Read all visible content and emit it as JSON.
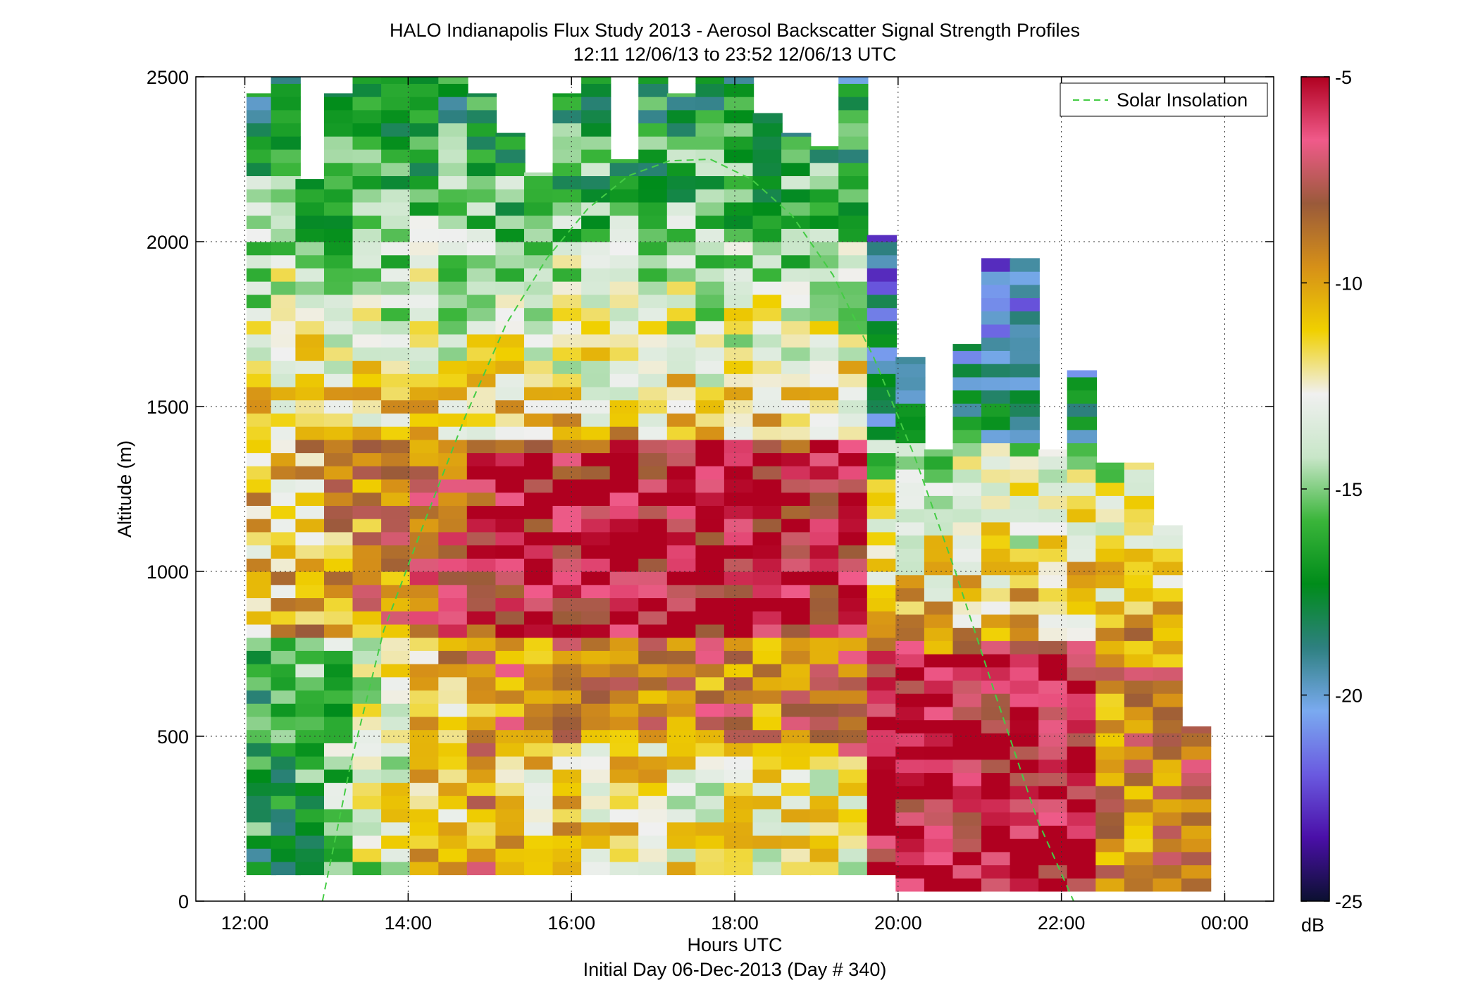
{
  "chart_data": {
    "type": "heatmap",
    "title": "HALO Indianapolis Flux Study 2013 - Aerosol Backscatter Signal Strength Profiles",
    "subtitle": "12:11 12/06/13 to 23:52 12/06/13  UTC",
    "xlabel": "Hours UTC",
    "xlabel2": "Initial Day 06-Dec-2013 (Day # 340)",
    "ylabel": "Altitude (m)",
    "xlim": [
      11.4,
      24.6
    ],
    "ylim": [
      0,
      2500
    ],
    "x_ticks": [
      12,
      14,
      16,
      18,
      20,
      22,
      24
    ],
    "x_tick_labels": [
      "12:00",
      "14:00",
      "16:00",
      "18:00",
      "20:00",
      "22:00",
      "00:00"
    ],
    "y_ticks": [
      0,
      500,
      1000,
      1500,
      2000,
      2500
    ],
    "y_tick_labels": [
      "0",
      "500",
      "1000",
      "1500",
      "2000",
      "2500"
    ],
    "grid": true,
    "colorbar": {
      "range": [
        -25,
        -5
      ],
      "ticks": [
        -25,
        -20,
        -15,
        -10,
        -5
      ],
      "tick_labels": [
        "-25",
        "-20",
        "-15",
        "-10",
        "-5"
      ],
      "unit": "dB",
      "colors": [
        "#0b1030",
        "#4a0fa8",
        "#6a5ae0",
        "#7aaaf0",
        "#2e8080",
        "#008c1a",
        "#3ab53a",
        "#c8e6c8",
        "#f0f0f0",
        "#f0d000",
        "#d69018",
        "#9a5a3a",
        "#f05a8a",
        "#b00020"
      ]
    },
    "legend": {
      "position": "top-right",
      "entries": [
        "Solar Insolation"
      ]
    },
    "series": [
      {
        "name": "Solar Insolation",
        "style": "dashed",
        "color": "#44cc44",
        "x": [
          12.95,
          13.3,
          13.7,
          14.2,
          14.7,
          15.2,
          15.7,
          16.2,
          16.7,
          17.2,
          17.7,
          18.2,
          18.7,
          19.2,
          19.7,
          20.2,
          20.7,
          21.2,
          21.7,
          22.15
        ],
        "y": [
          0,
          420,
          820,
          1150,
          1470,
          1750,
          1950,
          2100,
          2200,
          2245,
          2250,
          2190,
          2080,
          1900,
          1650,
          1350,
          1000,
          620,
          250,
          0
        ]
      }
    ],
    "heatmap": {
      "description_columns": [
        {
          "x": 12.2,
          "bottom": 80,
          "top": 2450
        },
        {
          "x": 12.5,
          "bottom": 80,
          "top": 2500
        },
        {
          "x": 12.8,
          "bottom": 80,
          "top": 2190
        },
        {
          "x": 13.15,
          "bottom": 80,
          "top": 2450
        },
        {
          "x": 13.5,
          "bottom": 80,
          "top": 2500
        },
        {
          "x": 13.85,
          "bottom": 80,
          "top": 2500
        },
        {
          "x": 14.2,
          "bottom": 80,
          "top": 2500
        },
        {
          "x": 14.55,
          "bottom": 80,
          "top": 2500
        },
        {
          "x": 14.9,
          "bottom": 80,
          "top": 2450
        },
        {
          "x": 15.25,
          "bottom": 80,
          "top": 2330
        },
        {
          "x": 15.6,
          "bottom": 80,
          "top": 2210
        },
        {
          "x": 15.95,
          "bottom": 80,
          "top": 2450
        },
        {
          "x": 16.3,
          "bottom": 80,
          "top": 2500
        },
        {
          "x": 16.65,
          "bottom": 80,
          "top": 2250
        },
        {
          "x": 17.0,
          "bottom": 80,
          "top": 2500
        },
        {
          "x": 17.35,
          "bottom": 80,
          "top": 2450
        },
        {
          "x": 17.7,
          "bottom": 80,
          "top": 2500
        },
        {
          "x": 18.05,
          "bottom": 80,
          "top": 2500
        },
        {
          "x": 18.4,
          "bottom": 80,
          "top": 2390
        },
        {
          "x": 18.75,
          "bottom": 80,
          "top": 2330
        },
        {
          "x": 19.1,
          "bottom": 80,
          "top": 2290
        },
        {
          "x": 19.45,
          "bottom": 80,
          "top": 2500
        },
        {
          "x": 19.8,
          "bottom": 80,
          "top": 2020
        },
        {
          "x": 20.15,
          "bottom": 30,
          "top": 1650
        },
        {
          "x": 20.5,
          "bottom": 30,
          "top": 1370
        },
        {
          "x": 20.85,
          "bottom": 30,
          "top": 1690
        },
        {
          "x": 21.2,
          "bottom": 30,
          "top": 1950
        },
        {
          "x": 21.55,
          "bottom": 30,
          "top": 1950
        },
        {
          "x": 21.9,
          "bottom": 30,
          "top": 1370
        },
        {
          "x": 22.25,
          "bottom": 30,
          "top": 1610
        },
        {
          "x": 22.6,
          "bottom": 30,
          "top": 1330
        },
        {
          "x": 22.95,
          "bottom": 30,
          "top": 1330
        },
        {
          "x": 23.3,
          "bottom": 30,
          "top": 1140
        },
        {
          "x": 23.65,
          "bottom": 30,
          "top": 530
        }
      ]
    }
  }
}
